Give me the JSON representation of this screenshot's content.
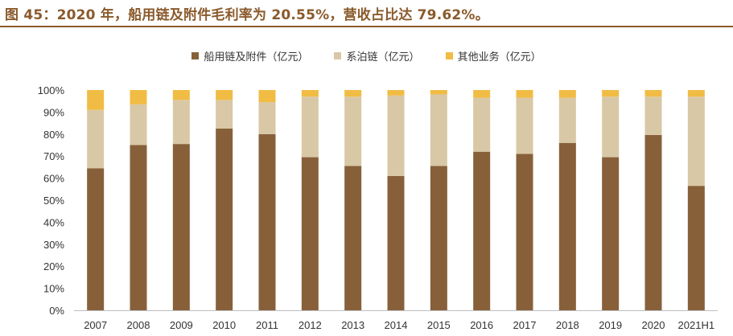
{
  "figure_title": "图 45：2020 年，船用链及附件毛利率为 20.55%，营收占比达 79.62%。",
  "colors": {
    "title": "#8a5a2b",
    "series": [
      "#87603a",
      "#d9c8a5",
      "#f0bc44"
    ],
    "axis": "#bfbfbf",
    "text": "#333333"
  },
  "chart_data": {
    "type": "bar",
    "stacked": true,
    "title": "",
    "xlabel": "",
    "ylabel": "",
    "ylim": [
      0,
      100
    ],
    "yticks": [
      "0%",
      "10%",
      "20%",
      "30%",
      "40%",
      "50%",
      "60%",
      "70%",
      "80%",
      "90%",
      "100%"
    ],
    "grid": false,
    "legend_position": "top-center",
    "categories": [
      "2007",
      "2008",
      "2009",
      "2010",
      "2011",
      "2012",
      "2013",
      "2014",
      "2015",
      "2016",
      "2017",
      "2018",
      "2019",
      "2020",
      "2021H1"
    ],
    "series": [
      {
        "name": "船用链及附件（亿元）",
        "color": "#87603a",
        "values": [
          64.5,
          75,
          75.5,
          82.5,
          80,
          69.5,
          65.5,
          61,
          65.5,
          72,
          71,
          76,
          69.5,
          79.6,
          56.5
        ]
      },
      {
        "name": "系泊链（亿元）",
        "color": "#d9c8a5",
        "values": [
          26.5,
          18.5,
          20,
          13,
          14.5,
          27.5,
          31.5,
          36.5,
          32.5,
          24.5,
          25.5,
          20.5,
          27.5,
          17.4,
          40.5
        ]
      },
      {
        "name": "其他业务（亿元）",
        "color": "#f0bc44",
        "values": [
          9,
          6.5,
          4.5,
          4.5,
          5.5,
          3,
          3,
          2.5,
          2,
          3.5,
          3.5,
          3.5,
          3,
          3,
          3
        ]
      }
    ]
  }
}
